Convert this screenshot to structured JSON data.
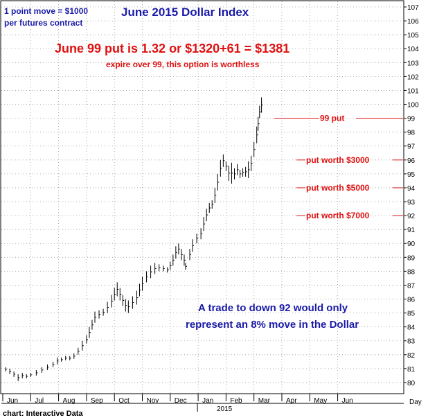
{
  "chart_data": {
    "type": "bar",
    "subtype": "ohlc",
    "title": "June 2015 Dollar Index",
    "headline": "June 99 put is 1.32 or $1320+61 = $1381",
    "subheadline": "expire over 99, this option is worthless",
    "note_top_left": [
      "1 point move = $1000",
      "per futures contract"
    ],
    "note_bottom": [
      "A trade to down 92 would only",
      "represent an 8% move in the Dollar"
    ],
    "source": "chart: Interactive Data",
    "x_months": [
      "Jun",
      "Jul",
      "Aug",
      "Sep",
      "Oct",
      "Nov",
      "Dec",
      "Jan",
      "Feb",
      "Mar",
      "Apr",
      "May",
      "Jun"
    ],
    "x_year_label": "2015",
    "x_axis_unit": "Day",
    "ylim": [
      79.2,
      107.4
    ],
    "y_ticks": [
      80,
      81,
      82,
      83,
      84,
      85,
      86,
      87,
      88,
      89,
      90,
      91,
      92,
      93,
      94,
      95,
      96,
      97,
      98,
      99,
      100,
      101,
      102,
      103,
      104,
      105,
      106,
      107
    ],
    "y_side": "right",
    "grid": true,
    "annotations": [
      {
        "label": "99 put",
        "y": 99
      },
      {
        "label": "put  worth $3000",
        "y": 96
      },
      {
        "label": "put  worth $5000",
        "y": 94
      },
      {
        "label": "put  worth $7000",
        "y": 92
      }
    ],
    "series": [
      {
        "bars": [
          [
            0.1,
            81.1,
            80.8
          ],
          [
            0.25,
            81.0,
            80.6
          ],
          [
            0.4,
            80.8,
            80.4
          ],
          [
            0.55,
            80.6,
            80.1
          ],
          [
            0.7,
            80.7,
            80.3
          ],
          [
            0.85,
            80.6,
            80.3
          ],
          [
            1.0,
            80.7,
            80.4
          ],
          [
            1.2,
            80.9,
            80.5
          ],
          [
            1.4,
            81.1,
            80.7
          ],
          [
            1.6,
            81.3,
            80.9
          ],
          [
            1.8,
            81.5,
            81.1
          ],
          [
            1.95,
            81.8,
            81.3
          ],
          [
            2.1,
            81.8,
            81.5
          ],
          [
            2.25,
            81.9,
            81.6
          ],
          [
            2.4,
            81.9,
            81.6
          ],
          [
            2.55,
            82.1,
            81.7
          ],
          [
            2.7,
            82.5,
            82.0
          ],
          [
            2.85,
            83.0,
            82.3
          ],
          [
            3.0,
            83.4,
            82.8
          ],
          [
            3.1,
            84.0,
            83.2
          ],
          [
            3.2,
            84.5,
            83.8
          ],
          [
            3.3,
            85.1,
            84.3
          ],
          [
            3.45,
            85.2,
            84.6
          ],
          [
            3.6,
            85.3,
            84.8
          ],
          [
            3.75,
            85.8,
            85.0
          ],
          [
            3.9,
            86.3,
            85.4
          ],
          [
            4.0,
            86.8,
            85.9
          ],
          [
            4.1,
            87.2,
            86.2
          ],
          [
            4.2,
            86.8,
            85.9
          ],
          [
            4.3,
            86.3,
            85.5
          ],
          [
            4.4,
            86.0,
            85.1
          ],
          [
            4.5,
            85.9,
            85.0
          ],
          [
            4.65,
            86.2,
            85.3
          ],
          [
            4.8,
            86.6,
            85.6
          ],
          [
            4.9,
            87.1,
            86.2
          ],
          [
            5.0,
            87.6,
            86.6
          ],
          [
            5.15,
            88.0,
            87.2
          ],
          [
            5.3,
            88.4,
            87.5
          ],
          [
            5.45,
            88.6,
            87.8
          ],
          [
            5.6,
            88.5,
            88.0
          ],
          [
            5.75,
            88.4,
            88.0
          ],
          [
            5.9,
            88.3,
            87.9
          ],
          [
            6.0,
            88.7,
            88.1
          ],
          [
            6.1,
            89.2,
            88.4
          ],
          [
            6.2,
            89.8,
            88.9
          ],
          [
            6.3,
            90.0,
            89.2
          ],
          [
            6.4,
            89.6,
            88.8
          ],
          [
            6.5,
            89.2,
            88.4
          ],
          [
            6.55,
            88.6,
            88.1
          ],
          [
            6.7,
            89.6,
            88.8
          ],
          [
            6.8,
            90.3,
            89.4
          ],
          [
            6.95,
            90.7,
            90.0
          ],
          [
            7.1,
            91.1,
            90.3
          ],
          [
            7.2,
            91.9,
            90.9
          ],
          [
            7.3,
            92.5,
            91.6
          ],
          [
            7.4,
            92.9,
            92.2
          ],
          [
            7.5,
            93.1,
            92.5
          ],
          [
            7.6,
            94.0,
            92.9
          ],
          [
            7.7,
            95.0,
            93.8
          ],
          [
            7.8,
            96.0,
            94.8
          ],
          [
            7.9,
            96.4,
            95.5
          ],
          [
            8.0,
            95.9,
            95.2
          ],
          [
            8.1,
            95.6,
            94.5
          ],
          [
            8.2,
            95.8,
            94.3
          ],
          [
            8.3,
            95.4,
            94.6
          ],
          [
            8.4,
            95.7,
            94.9
          ],
          [
            8.5,
            95.3,
            94.7
          ],
          [
            8.6,
            95.4,
            94.8
          ],
          [
            8.7,
            95.5,
            94.8
          ],
          [
            8.8,
            95.9,
            94.7
          ],
          [
            8.9,
            96.3,
            95.2
          ],
          [
            9.0,
            97.3,
            96.2
          ],
          [
            9.1,
            98.4,
            97.2
          ],
          [
            9.15,
            99.1,
            98.1
          ],
          [
            9.2,
            99.9,
            99.0
          ],
          [
            9.27,
            100.5,
            99.4
          ]
        ]
      }
    ]
  }
}
